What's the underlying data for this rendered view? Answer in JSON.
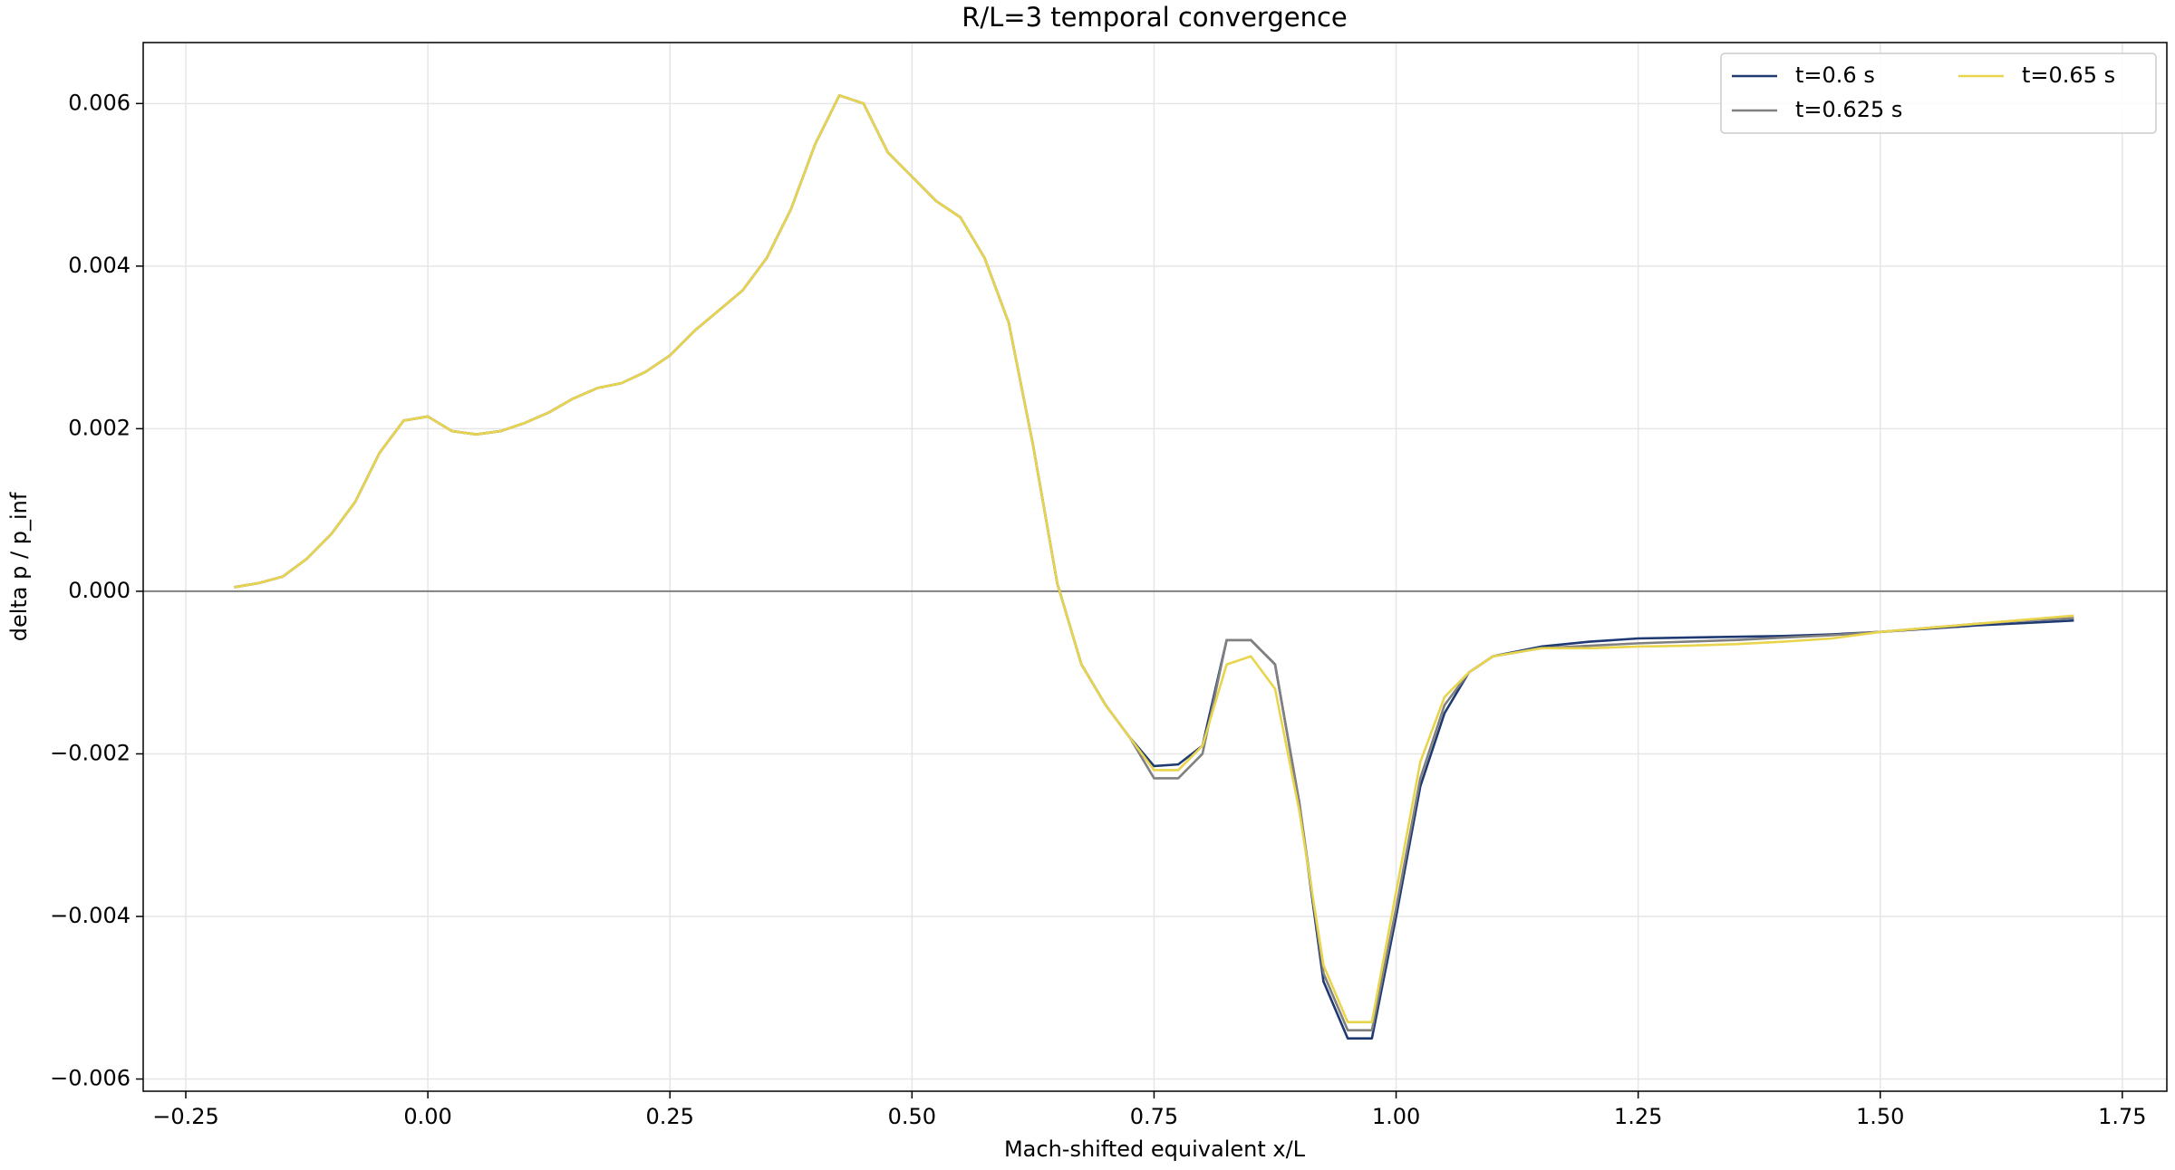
{
  "chart_data": {
    "type": "line",
    "title": "R/L=3 temporal convergence",
    "x_label": "Mach-shifted equivalent x/L",
    "y_label": "delta p / p_inf",
    "x": [
      -0.2,
      -0.175,
      -0.15,
      -0.125,
      -0.1,
      -0.075,
      -0.05,
      -0.025,
      0,
      0.025,
      0.05,
      0.075,
      0.1,
      0.125,
      0.15,
      0.175,
      0.2,
      0.225,
      0.25,
      0.275,
      0.3,
      0.325,
      0.35,
      0.375,
      0.4,
      0.425,
      0.45,
      0.475,
      0.5,
      0.525,
      0.55,
      0.575,
      0.6,
      0.625,
      0.65,
      0.675,
      0.7,
      0.725,
      0.75,
      0.775,
      0.8,
      0.825,
      0.85,
      0.875,
      0.9,
      0.925,
      0.95,
      0.975,
      1.0,
      1.025,
      1.05,
      1.075,
      1.1,
      1.15,
      1.2,
      1.25,
      1.3,
      1.35,
      1.4,
      1.45,
      1.5,
      1.55,
      1.6,
      1.65,
      1.7
    ],
    "series": [
      {
        "name": "t=0.6 s",
        "color": "#1f3a73",
        "values": [
          5e-05,
          0.0001,
          0.00018,
          0.0004,
          0.0007,
          0.0011,
          0.0017,
          0.0021,
          0.00215,
          0.00197,
          0.00193,
          0.00197,
          0.00207,
          0.0022,
          0.00237,
          0.0025,
          0.00256,
          0.0027,
          0.0029,
          0.0032,
          0.00345,
          0.0037,
          0.0041,
          0.0047,
          0.0055,
          0.0061,
          0.006,
          0.0054,
          0.0051,
          0.0048,
          0.0046,
          0.0041,
          0.0033,
          0.0018,
          0.0001,
          -0.0009,
          -0.0014,
          -0.0018,
          -0.00215,
          -0.00213,
          -0.0019,
          -0.0006,
          -0.0006,
          -0.0009,
          -0.0026,
          -0.0048,
          -0.0055,
          -0.0055,
          -0.004,
          -0.0024,
          -0.0015,
          -0.001,
          -0.0008,
          -0.00068,
          -0.00062,
          -0.00058,
          -0.00057,
          -0.00056,
          -0.00055,
          -0.00053,
          -0.0005,
          -0.00046,
          -0.00042,
          -0.00039,
          -0.00036
        ]
      },
      {
        "name": "t=0.625 s",
        "color": "#808080",
        "values": [
          5e-05,
          0.0001,
          0.00018,
          0.0004,
          0.0007,
          0.0011,
          0.0017,
          0.0021,
          0.00215,
          0.00197,
          0.00193,
          0.00197,
          0.00207,
          0.0022,
          0.00237,
          0.0025,
          0.00256,
          0.0027,
          0.0029,
          0.0032,
          0.00345,
          0.0037,
          0.0041,
          0.0047,
          0.0055,
          0.0061,
          0.006,
          0.0054,
          0.0051,
          0.0048,
          0.0046,
          0.0041,
          0.0033,
          0.0018,
          0.0001,
          -0.0009,
          -0.0014,
          -0.0018,
          -0.0023,
          -0.0023,
          -0.002,
          -0.0006,
          -0.0006,
          -0.0009,
          -0.0026,
          -0.0047,
          -0.0054,
          -0.0054,
          -0.0039,
          -0.0023,
          -0.0014,
          -0.001,
          -0.0008,
          -0.0007,
          -0.00067,
          -0.00064,
          -0.00062,
          -0.0006,
          -0.00057,
          -0.00054,
          -0.0005,
          -0.00045,
          -0.0004,
          -0.00036,
          -0.00033
        ]
      },
      {
        "name": "t=0.65 s",
        "color": "#e8d44d",
        "values": [
          5e-05,
          0.0001,
          0.00018,
          0.0004,
          0.0007,
          0.0011,
          0.0017,
          0.0021,
          0.00215,
          0.00197,
          0.00193,
          0.00197,
          0.00207,
          0.0022,
          0.00237,
          0.0025,
          0.00256,
          0.0027,
          0.0029,
          0.0032,
          0.00345,
          0.0037,
          0.0041,
          0.0047,
          0.0055,
          0.0061,
          0.006,
          0.0054,
          0.0051,
          0.0048,
          0.0046,
          0.0041,
          0.0033,
          0.0018,
          0.0001,
          -0.0009,
          -0.0014,
          -0.0018,
          -0.0022,
          -0.0022,
          -0.0019,
          -0.0009,
          -0.0008,
          -0.0012,
          -0.0027,
          -0.0046,
          -0.0053,
          -0.0053,
          -0.0037,
          -0.0021,
          -0.0013,
          -0.001,
          -0.0008,
          -0.0007,
          -0.0007,
          -0.00068,
          -0.00067,
          -0.00065,
          -0.00062,
          -0.00058,
          -0.0005,
          -0.00045,
          -0.0004,
          -0.00035,
          -0.0003
        ]
      }
    ],
    "xlim": [
      -0.294,
      1.796
    ],
    "ylim": [
      -0.00615,
      0.00675
    ],
    "xticks": [
      {
        "value": -0.25,
        "label": "−0.25"
      },
      {
        "value": 0,
        "label": "0.00"
      },
      {
        "value": 0.25,
        "label": "0.25"
      },
      {
        "value": 0.5,
        "label": "0.50"
      },
      {
        "value": 0.75,
        "label": "0.75"
      },
      {
        "value": 1,
        "label": "1.00"
      },
      {
        "value": 1.25,
        "label": "1.25"
      },
      {
        "value": 1.5,
        "label": "1.50"
      },
      {
        "value": 1.75,
        "label": "1.75"
      }
    ],
    "yticks": [
      {
        "value": -0.006,
        "label": "−0.006"
      },
      {
        "value": -0.004,
        "label": "−0.004"
      },
      {
        "value": -0.002,
        "label": "−0.002"
      },
      {
        "value": 0,
        "label": "0.000"
      },
      {
        "value": 0.002,
        "label": "0.002"
      },
      {
        "value": 0.004,
        "label": "0.004"
      },
      {
        "value": 0.006,
        "label": "0.006"
      }
    ],
    "grid": true,
    "hline": 0,
    "legend": "upper right",
    "legend_columns": 2
  }
}
